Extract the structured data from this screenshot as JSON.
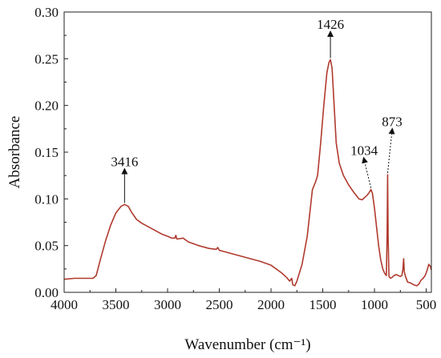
{
  "chart_data": {
    "type": "line",
    "title": "",
    "xlabel": "Wavenumber (cm⁻¹)",
    "ylabel": "Absorbance",
    "xlim": [
      4000,
      450
    ],
    "ylim": [
      0.0,
      0.3
    ],
    "x_reversed": true,
    "grid": false,
    "x_ticks": [
      4000,
      3500,
      3000,
      2500,
      2000,
      1500,
      1000,
      500
    ],
    "x_tick_labels": [
      "4000",
      "3500",
      "3000",
      "2500",
      "2000",
      "1500",
      "1000",
      "500"
    ],
    "y_ticks": [
      0.0,
      0.05,
      0.1,
      0.15,
      0.2,
      0.25,
      0.3
    ],
    "y_tick_labels": [
      "0.00",
      "0.05",
      "0.10",
      "0.15",
      "0.20",
      "0.25",
      "0.30"
    ],
    "line_color": "#b03a2e",
    "series": [
      {
        "points": [
          [
            4000,
            0.014
          ],
          [
            3900,
            0.015
          ],
          [
            3800,
            0.015
          ],
          [
            3720,
            0.015
          ],
          [
            3690,
            0.018
          ],
          [
            3650,
            0.035
          ],
          [
            3600,
            0.055
          ],
          [
            3550,
            0.072
          ],
          [
            3500,
            0.085
          ],
          [
            3450,
            0.092
          ],
          [
            3416,
            0.094
          ],
          [
            3380,
            0.092
          ],
          [
            3350,
            0.086
          ],
          [
            3300,
            0.078
          ],
          [
            3250,
            0.074
          ],
          [
            3200,
            0.071
          ],
          [
            3150,
            0.068
          ],
          [
            3100,
            0.065
          ],
          [
            3050,
            0.062
          ],
          [
            3000,
            0.06
          ],
          [
            2960,
            0.058
          ],
          [
            2930,
            0.058
          ],
          [
            2920,
            0.061
          ],
          [
            2910,
            0.057
          ],
          [
            2850,
            0.058
          ],
          [
            2800,
            0.054
          ],
          [
            2700,
            0.05
          ],
          [
            2600,
            0.047
          ],
          [
            2530,
            0.046
          ],
          [
            2515,
            0.048
          ],
          [
            2500,
            0.045
          ],
          [
            2400,
            0.042
          ],
          [
            2300,
            0.039
          ],
          [
            2200,
            0.036
          ],
          [
            2100,
            0.033
          ],
          [
            2000,
            0.029
          ],
          [
            1950,
            0.025
          ],
          [
            1900,
            0.021
          ],
          [
            1850,
            0.016
          ],
          [
            1820,
            0.012
          ],
          [
            1800,
            0.015
          ],
          [
            1790,
            0.008
          ],
          [
            1770,
            0.007
          ],
          [
            1750,
            0.012
          ],
          [
            1700,
            0.03
          ],
          [
            1650,
            0.06
          ],
          [
            1620,
            0.09
          ],
          [
            1600,
            0.11
          ],
          [
            1570,
            0.118
          ],
          [
            1550,
            0.125
          ],
          [
            1520,
            0.16
          ],
          [
            1490,
            0.2
          ],
          [
            1460,
            0.235
          ],
          [
            1440,
            0.246
          ],
          [
            1426,
            0.249
          ],
          [
            1410,
            0.24
          ],
          [
            1390,
            0.2
          ],
          [
            1370,
            0.16
          ],
          [
            1340,
            0.138
          ],
          [
            1300,
            0.125
          ],
          [
            1250,
            0.115
          ],
          [
            1200,
            0.107
          ],
          [
            1150,
            0.1
          ],
          [
            1120,
            0.099
          ],
          [
            1100,
            0.101
          ],
          [
            1070,
            0.104
          ],
          [
            1050,
            0.107
          ],
          [
            1034,
            0.11
          ],
          [
            1020,
            0.106
          ],
          [
            1000,
            0.09
          ],
          [
            980,
            0.07
          ],
          [
            960,
            0.05
          ],
          [
            940,
            0.035
          ],
          [
            920,
            0.025
          ],
          [
            900,
            0.02
          ],
          [
            885,
            0.018
          ],
          [
            878,
            0.06
          ],
          [
            873,
            0.126
          ],
          [
            868,
            0.06
          ],
          [
            860,
            0.017
          ],
          [
            845,
            0.015
          ],
          [
            830,
            0.016
          ],
          [
            810,
            0.018
          ],
          [
            790,
            0.019
          ],
          [
            770,
            0.018
          ],
          [
            750,
            0.017
          ],
          [
            735,
            0.018
          ],
          [
            725,
            0.025
          ],
          [
            718,
            0.036
          ],
          [
            712,
            0.022
          ],
          [
            700,
            0.017
          ],
          [
            680,
            0.011
          ],
          [
            650,
            0.01
          ],
          [
            620,
            0.008
          ],
          [
            590,
            0.007
          ],
          [
            570,
            0.009
          ],
          [
            550,
            0.013
          ],
          [
            530,
            0.015
          ],
          [
            510,
            0.018
          ],
          [
            490,
            0.024
          ],
          [
            475,
            0.03
          ],
          [
            460,
            0.028
          ],
          [
            450,
            0.024
          ]
        ]
      }
    ],
    "annotations": [
      {
        "label": "3416",
        "x": 3416,
        "y": 0.094,
        "text_x": 3416,
        "text_y": 0.135,
        "style": "solid"
      },
      {
        "label": "1426",
        "x": 1426,
        "y": 0.249,
        "text_x": 1426,
        "text_y": 0.282,
        "style": "solid"
      },
      {
        "label": "1034",
        "x": 1034,
        "y": 0.11,
        "text_x": 1100,
        "text_y": 0.147,
        "style": "dashed"
      },
      {
        "label": "873",
        "x": 873,
        "y": 0.126,
        "text_x": 830,
        "text_y": 0.178,
        "style": "dashed"
      }
    ]
  }
}
